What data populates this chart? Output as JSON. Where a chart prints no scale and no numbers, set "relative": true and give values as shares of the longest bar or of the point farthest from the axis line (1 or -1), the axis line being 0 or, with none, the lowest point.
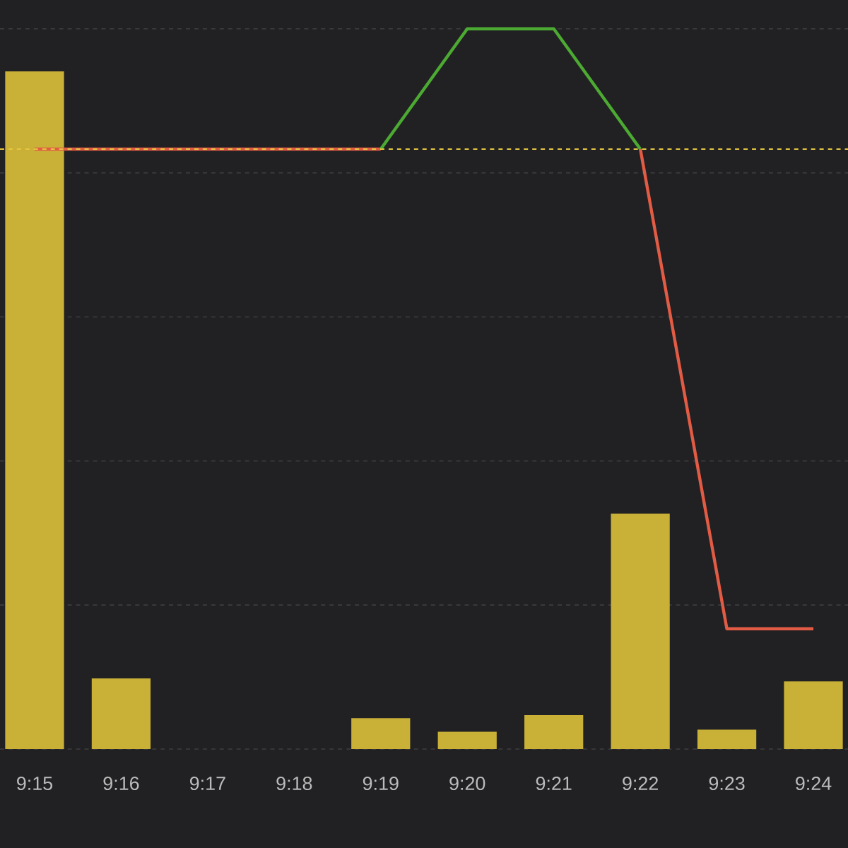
{
  "chart_data": {
    "type": "bar",
    "relative": true,
    "tick_labels": "x",
    "grid": "y",
    "marker": "none",
    "categories": [
      "9:15",
      "9:16",
      "9:17",
      "9:18",
      "9:19",
      "9:20",
      "9:21",
      "9:22",
      "9:23",
      "9:24"
    ],
    "series": [
      {
        "color": "#c9b037",
        "values": [
          0.941,
          0.098,
          0,
          0,
          0.043,
          0.024,
          0.047,
          0.327,
          0.027,
          0.094
        ]
      },
      {
        "type": "line",
        "color": "#e25b44",
        "values": [
          0.833,
          0.833,
          0.833,
          0.833,
          0.833,
          null,
          null,
          0.833,
          0.167,
          0.167
        ]
      },
      {
        "type": "line",
        "color": "#4caa32",
        "values": [
          null,
          null,
          null,
          null,
          0.833,
          1,
          1,
          0.833,
          null,
          null
        ]
      }
    ],
    "ref_lines": [
      {
        "axis": "y",
        "value": 0.833,
        "color": "#e5c640",
        "line_style": "dashed"
      }
    ]
  }
}
